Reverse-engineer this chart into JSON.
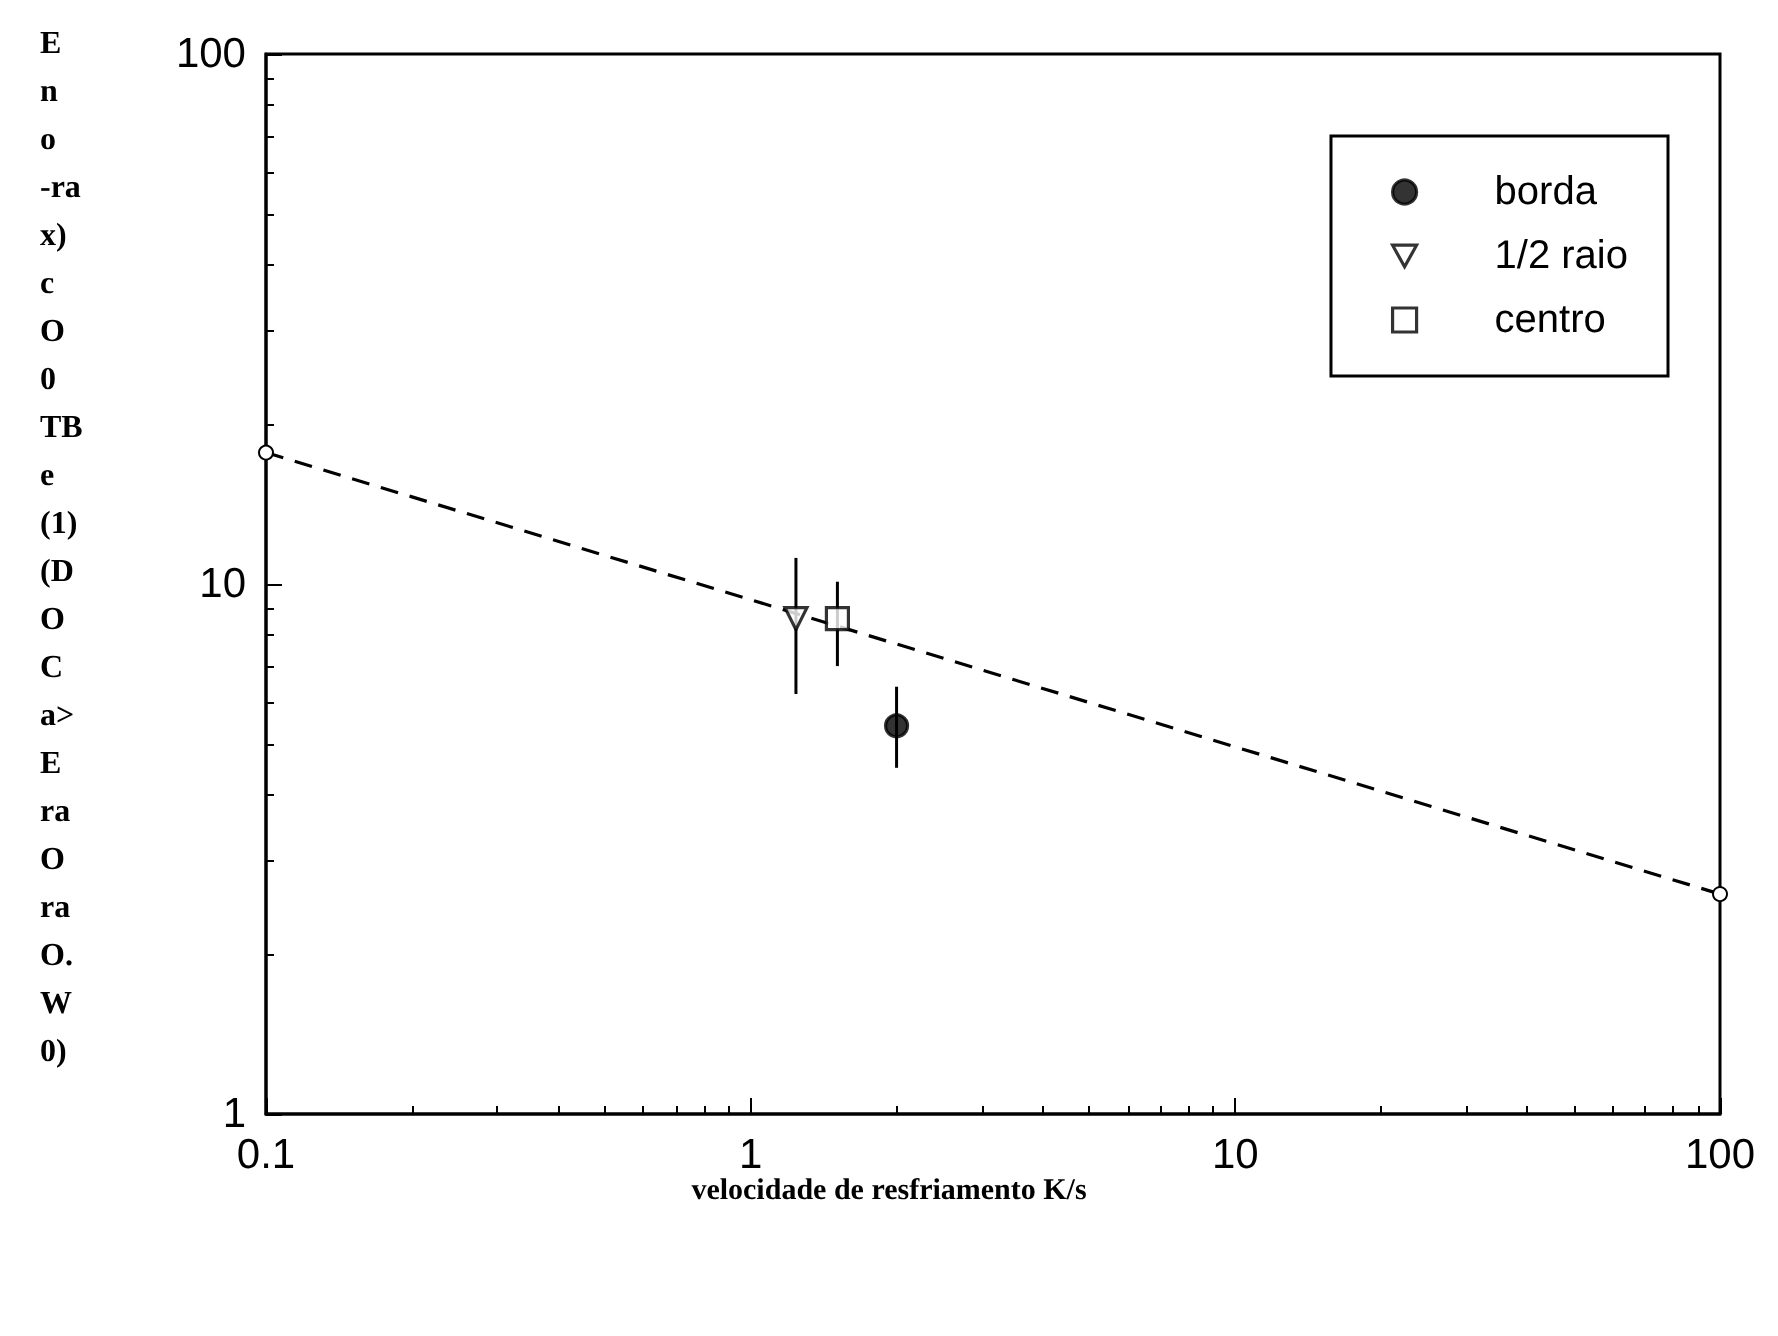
{
  "chart_data": {
    "type": "scatter",
    "xlabel": "velocidade de resfriamento K/s",
    "ylabel": "E n o -ra x) c O 0 TB e (1) (D O C a> E ra O ra O. W 0)",
    "log": "xy",
    "xlim": [
      0.1,
      100
    ],
    "xticks": [
      0.1,
      1,
      10,
      100
    ],
    "ylim": [
      1,
      100
    ],
    "yticks": [
      1,
      10,
      100
    ],
    "grid": false,
    "legend": "top right",
    "series": [
      {
        "name": "borda",
        "color": "#000000",
        "marker": "circle",
        "x": [
          2.0
        ],
        "values": [
          5.4
        ],
        "errors": [
          [
            4.5,
            6.4
          ]
        ]
      },
      {
        "name": "1/2 raio",
        "color": "#000000",
        "marker": "triangle",
        "x": [
          1.24
        ],
        "values": [
          8.6
        ],
        "errors": [
          [
            6.2,
            11.2
          ]
        ]
      },
      {
        "name": "centro",
        "color": "#000000",
        "marker": "square",
        "x": [
          1.51
        ],
        "values": [
          8.6
        ],
        "errors": [
          [
            7.0,
            10.1
          ]
        ]
      },
      {
        "type": "line",
        "color": "#000000",
        "marker": "circle",
        "line_style": "dashed",
        "x": [
          0.1,
          100
        ],
        "values": [
          17.7,
          2.6
        ]
      }
    ]
  }
}
